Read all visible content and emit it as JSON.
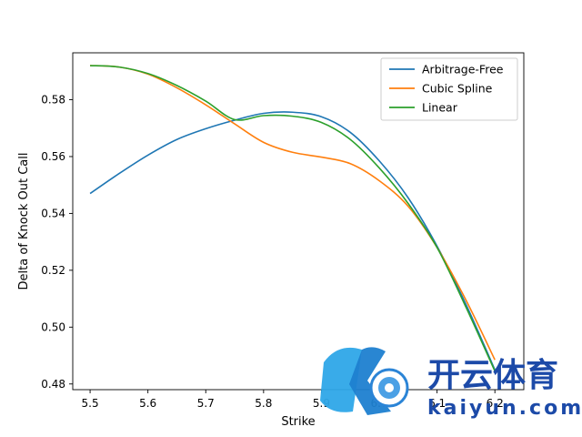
{
  "chart_data": {
    "type": "line",
    "xlabel": "Strike",
    "ylabel": "Delta of Knock Out Call",
    "xlim": [
      5.47,
      6.25
    ],
    "ylim": [
      0.478,
      0.5965
    ],
    "xticks": [
      5.5,
      5.6,
      5.7,
      5.8,
      5.9,
      6.0,
      6.1,
      6.2
    ],
    "xtick_labels": [
      "5.5",
      "5.6",
      "5.7",
      "5.8",
      "5.9",
      "6.0",
      "6.1",
      "6.2"
    ],
    "yticks": [
      0.48,
      0.5,
      0.52,
      0.54,
      0.56,
      0.58
    ],
    "ytick_labels": [
      "0.48",
      "0.50",
      "0.52",
      "0.54",
      "0.56",
      "0.58"
    ],
    "grid": false,
    "legend_position": "upper-right",
    "series": [
      {
        "name": "Arbitrage-Free",
        "color": "#1f77b4",
        "x": [
          5.5,
          5.55,
          5.6,
          5.65,
          5.7,
          5.75,
          5.8,
          5.85,
          5.9,
          5.95,
          6.0,
          6.05,
          6.1,
          6.15,
          6.2
        ],
        "y": [
          0.547,
          0.554,
          0.5605,
          0.566,
          0.5698,
          0.5728,
          0.5752,
          0.5756,
          0.574,
          0.5685,
          0.5585,
          0.5455,
          0.5285,
          0.508,
          0.485
        ]
      },
      {
        "name": "Cubic Spline",
        "color": "#ff7f0e",
        "x": [
          5.5,
          5.55,
          5.6,
          5.65,
          5.7,
          5.75,
          5.8,
          5.85,
          5.9,
          5.95,
          6.0,
          6.05,
          6.1,
          6.15,
          6.2
        ],
        "y": [
          0.592,
          0.5915,
          0.589,
          0.5842,
          0.5782,
          0.5715,
          0.565,
          0.5615,
          0.5598,
          0.5575,
          0.5515,
          0.5425,
          0.528,
          0.5095,
          0.4885
        ]
      },
      {
        "name": "Linear",
        "color": "#2ca02c",
        "x": [
          5.5,
          5.55,
          5.6,
          5.65,
          5.7,
          5.75,
          5.8,
          5.85,
          5.9,
          5.95,
          6.0,
          6.05,
          6.1,
          6.15,
          6.2
        ],
        "y": [
          0.592,
          0.5915,
          0.5892,
          0.585,
          0.5795,
          0.573,
          0.5744,
          0.5742,
          0.572,
          0.566,
          0.556,
          0.5435,
          0.528,
          0.507,
          0.4845
        ]
      }
    ]
  },
  "watermark": {
    "logo_letter": "K",
    "title": "开云体育",
    "url": "kaiyun.com"
  }
}
